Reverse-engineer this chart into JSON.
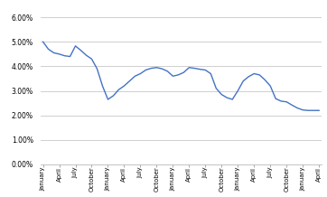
{
  "ylim": [
    0.0,
    0.065
  ],
  "yticks": [
    0.0,
    0.01,
    0.02,
    0.03,
    0.04,
    0.05,
    0.06
  ],
  "ytick_labels": [
    "0.00%",
    "1.00%",
    "2.00%",
    "3.00%",
    "4.00%",
    "5.00%",
    "6.00%"
  ],
  "quarter_labels": [
    "January",
    "April",
    "July",
    "October",
    "January",
    "April",
    "July",
    "October",
    "January",
    "April",
    "July",
    "October",
    "January",
    "April",
    "July",
    "October",
    "January",
    "April"
  ],
  "quarter_positions": [
    0,
    3,
    6,
    9,
    12,
    15,
    18,
    21,
    24,
    27,
    30,
    33,
    36,
    39,
    42,
    45,
    48,
    51
  ],
  "values_52": [
    0.05,
    0.047,
    0.0455,
    0.045,
    0.0443,
    0.044,
    0.0483,
    0.0465,
    0.0445,
    0.043,
    0.039,
    0.032,
    0.0265,
    0.028,
    0.0305,
    0.032,
    0.034,
    0.036,
    0.037,
    0.0385,
    0.0392,
    0.0395,
    0.039,
    0.038,
    0.036,
    0.0365,
    0.0375,
    0.0395,
    0.0392,
    0.0388,
    0.0385,
    0.037,
    0.031,
    0.0285,
    0.0272,
    0.0265,
    0.03,
    0.034,
    0.0358,
    0.037,
    0.0365,
    0.0345,
    0.032,
    0.0268,
    0.0258,
    0.0255,
    0.0242,
    0.023,
    0.0222,
    0.022,
    0.022,
    0.022
  ],
  "n_months": 52,
  "line_color": "#4472c4",
  "line_width": 1.0,
  "fig_bg": "#ffffff",
  "plot_bg": "#ffffff",
  "grid_color": "#c8c8c8",
  "grid_linewidth": 0.6,
  "tick_fontsize": 5.0,
  "ytick_fontsize": 5.5,
  "xlim_left": -0.5,
  "xlim_right": 51.5
}
